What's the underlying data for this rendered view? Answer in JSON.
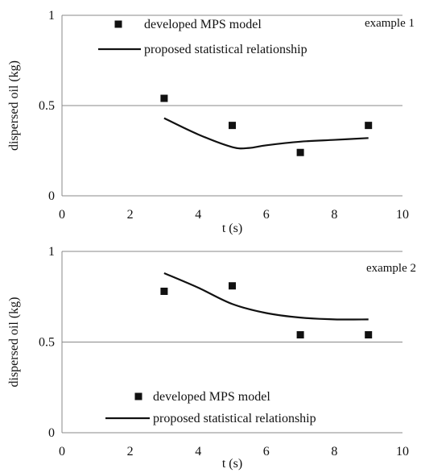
{
  "chart_data": [
    {
      "type": "scatter",
      "title": "example 1",
      "xlabel": "t (s)",
      "ylabel": "dispersed oil (kg)",
      "xlim": [
        0,
        10
      ],
      "ylim": [
        0,
        1
      ],
      "x_ticks": [
        "0",
        "2",
        "4",
        "6",
        "8",
        "10"
      ],
      "y_ticks": [
        "0",
        "0.5",
        "1"
      ],
      "grid": "horizontal",
      "legend_position": "top",
      "series": [
        {
          "name": "developed MPS model",
          "kind": "markers",
          "marker": "square",
          "color": "#111111",
          "x": [
            3,
            5,
            7,
            9
          ],
          "y": [
            0.54,
            0.39,
            0.24,
            0.39
          ]
        },
        {
          "name": "proposed statistical relationship",
          "kind": "line",
          "color": "#111111",
          "x": [
            3,
            4,
            5,
            5.5,
            6,
            7,
            8,
            9
          ],
          "y": [
            0.43,
            0.34,
            0.27,
            0.265,
            0.28,
            0.3,
            0.31,
            0.32
          ]
        }
      ]
    },
    {
      "type": "scatter",
      "title": "example 2",
      "xlabel": "t (s)",
      "ylabel": "dispersed oil (kg)",
      "xlim": [
        0,
        10
      ],
      "ylim": [
        0,
        1
      ],
      "x_ticks": [
        "0",
        "2",
        "4",
        "6",
        "8",
        "10"
      ],
      "y_ticks": [
        "0",
        "0.5",
        "1"
      ],
      "grid": "horizontal",
      "legend_position": "bottom",
      "series": [
        {
          "name": "developed MPS model",
          "kind": "markers",
          "marker": "square",
          "color": "#111111",
          "x": [
            3,
            5,
            7,
            9
          ],
          "y": [
            0.78,
            0.81,
            0.54,
            0.54
          ]
        },
        {
          "name": "proposed statistical relationship",
          "kind": "line",
          "color": "#111111",
          "x": [
            3,
            4,
            5,
            6,
            7,
            8,
            9
          ],
          "y": [
            0.88,
            0.8,
            0.71,
            0.66,
            0.635,
            0.625,
            0.625
          ]
        }
      ]
    }
  ]
}
